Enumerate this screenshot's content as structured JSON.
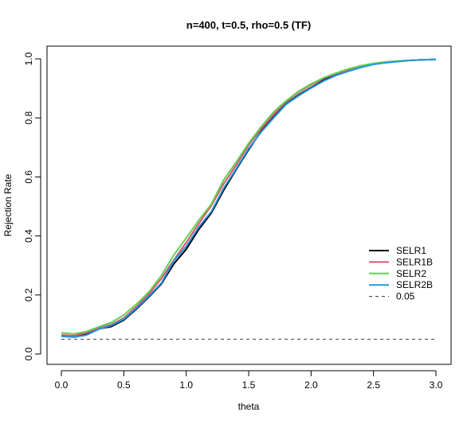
{
  "chart_data": {
    "type": "line",
    "title": "n=400, t=0.5, rho=0.5 (TF)",
    "xlabel": "theta",
    "ylabel": "Rejection Rate",
    "xlim": [
      0,
      3
    ],
    "ylim": [
      0,
      1
    ],
    "x_ticks": [
      "0.0",
      "0.5",
      "1.0",
      "1.5",
      "2.0",
      "2.5",
      "3.0"
    ],
    "y_ticks": [
      "0.0",
      "0.2",
      "0.4",
      "0.6",
      "0.8",
      "1.0"
    ],
    "x": [
      0.0,
      0.1,
      0.2,
      0.3,
      0.4,
      0.5,
      0.6,
      0.7,
      0.8,
      0.9,
      1.0,
      1.1,
      1.2,
      1.3,
      1.4,
      1.5,
      1.6,
      1.7,
      1.8,
      1.9,
      2.0,
      2.1,
      2.2,
      2.3,
      2.4,
      2.5,
      2.6,
      2.7,
      2.8,
      2.9,
      3.0
    ],
    "series": [
      {
        "name": "SELR1",
        "color": "#000000",
        "values": [
          0.063,
          0.058,
          0.066,
          0.085,
          0.093,
          0.115,
          0.152,
          0.193,
          0.237,
          0.305,
          0.355,
          0.422,
          0.477,
          0.555,
          0.625,
          0.692,
          0.755,
          0.803,
          0.848,
          0.878,
          0.903,
          0.928,
          0.946,
          0.959,
          0.972,
          0.982,
          0.988,
          0.992,
          0.995,
          0.997,
          0.998
        ]
      },
      {
        "name": "SELR1B",
        "color": "#df536b",
        "values": [
          0.065,
          0.062,
          0.072,
          0.088,
          0.1,
          0.122,
          0.16,
          0.203,
          0.255,
          0.318,
          0.378,
          0.442,
          0.502,
          0.577,
          0.64,
          0.708,
          0.763,
          0.812,
          0.855,
          0.887,
          0.912,
          0.934,
          0.95,
          0.963,
          0.975,
          0.984,
          0.989,
          0.993,
          0.995,
          0.997,
          0.998
        ]
      },
      {
        "name": "SELR2",
        "color": "#61d04f",
        "values": [
          0.072,
          0.068,
          0.076,
          0.092,
          0.107,
          0.132,
          0.168,
          0.21,
          0.265,
          0.335,
          0.393,
          0.453,
          0.507,
          0.59,
          0.65,
          0.714,
          0.77,
          0.82,
          0.858,
          0.89,
          0.915,
          0.936,
          0.952,
          0.966,
          0.977,
          0.985,
          0.99,
          0.993,
          0.995,
          0.997,
          0.998
        ]
      },
      {
        "name": "SELR2B",
        "color": "#2297e6",
        "values": [
          0.06,
          0.057,
          0.064,
          0.084,
          0.097,
          0.118,
          0.155,
          0.196,
          0.24,
          0.315,
          0.365,
          0.43,
          0.482,
          0.562,
          0.628,
          0.696,
          0.752,
          0.8,
          0.846,
          0.875,
          0.901,
          0.925,
          0.944,
          0.958,
          0.971,
          0.981,
          0.987,
          0.991,
          0.995,
          0.997,
          0.998
        ]
      }
    ],
    "reference_line": {
      "label": "0.05",
      "y": 0.05,
      "color": "#555555"
    },
    "legend_position": "right",
    "grid": false
  }
}
